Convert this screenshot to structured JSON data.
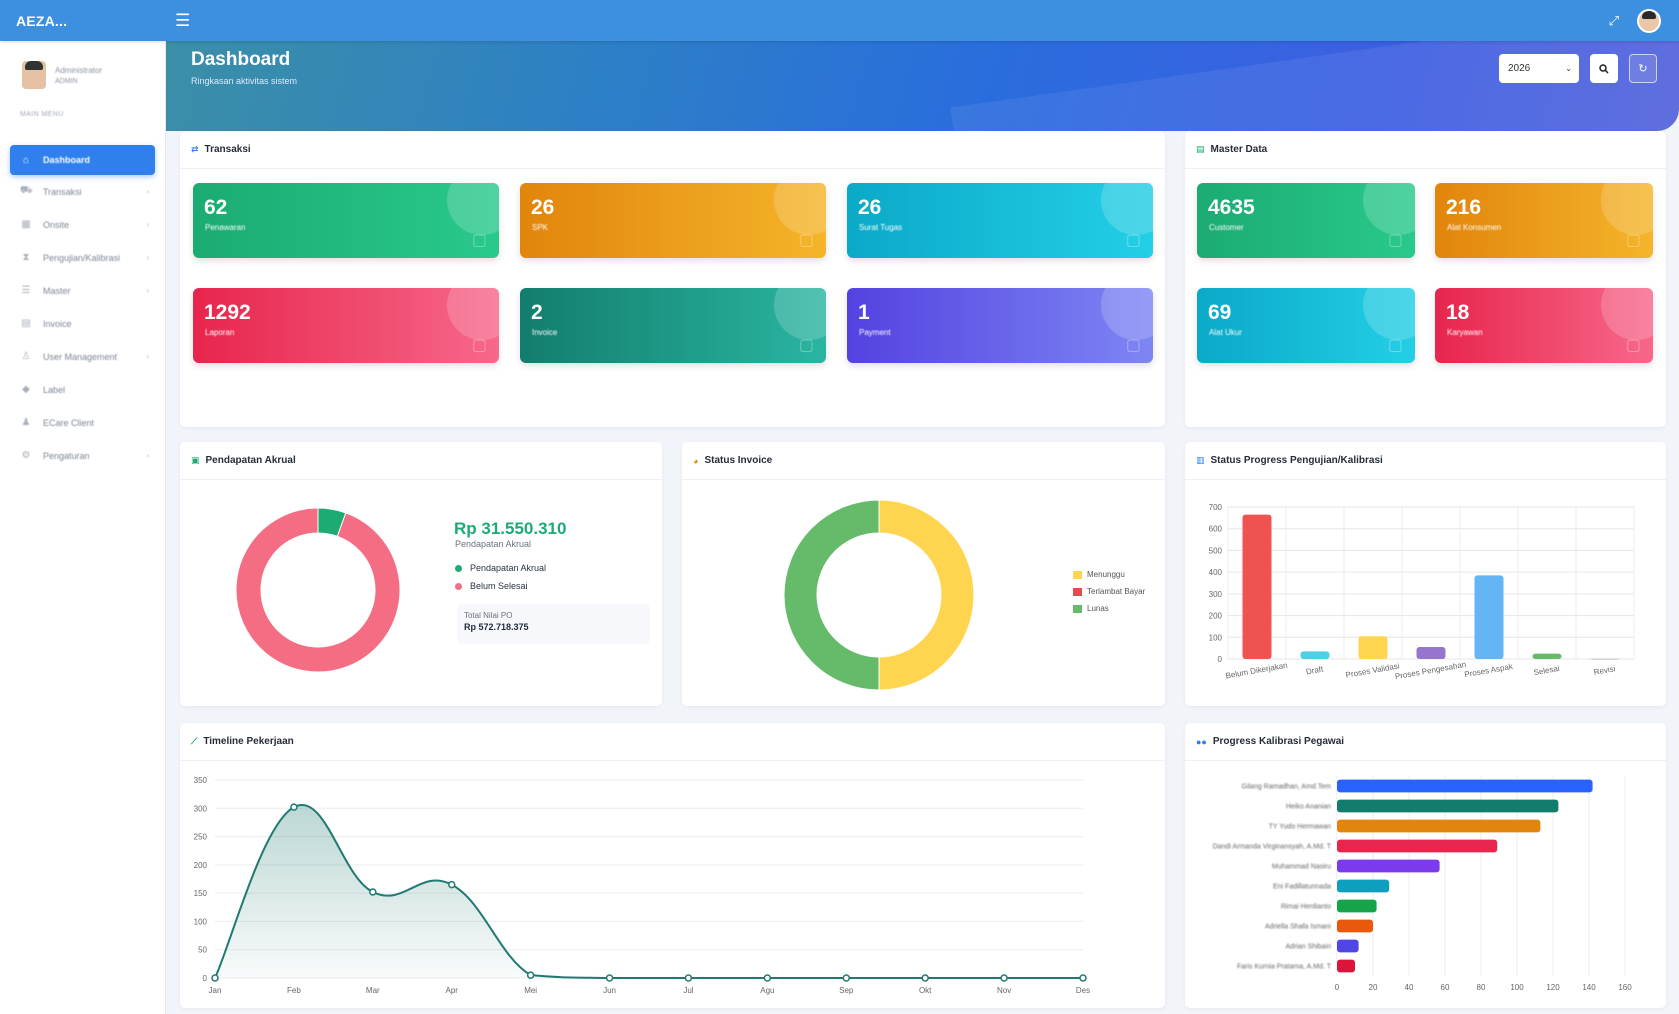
{
  "topbar": {
    "brand": "AEZA...",
    "menu_icon": "hamburger-icon",
    "fullscreen_icon": "expand-icon"
  },
  "sidebar": {
    "user_name": "Administrator",
    "user_role": "ADMIN",
    "heading": "MAIN MENU",
    "items": [
      {
        "label": "Dashboard",
        "icon": "home-icon",
        "active": true
      },
      {
        "label": "Transaksi",
        "icon": "cart-icon",
        "caret": true
      },
      {
        "label": "Onsite",
        "icon": "building-icon",
        "caret": true
      },
      {
        "label": "Pengujian/Kalibrasi",
        "icon": "hourglass-icon",
        "caret": true
      },
      {
        "label": "Master",
        "icon": "database-icon",
        "caret": true
      },
      {
        "label": "Invoice",
        "icon": "file-icon"
      },
      {
        "label": "User Management",
        "icon": "user-icon",
        "caret": true
      },
      {
        "label": "Label",
        "icon": "tag-icon"
      },
      {
        "label": "ECare Client",
        "icon": "person-icon"
      },
      {
        "label": "Pengaturan",
        "icon": "gear-icon",
        "caret": true
      }
    ]
  },
  "header": {
    "title": "Dashboard",
    "subtitle": "Ringkasan aktivitas sistem",
    "year_value": "2026"
  },
  "transaksi": {
    "title": "Transaksi",
    "stats": [
      {
        "value": "62",
        "label": "Penawaran"
      },
      {
        "value": "26",
        "label": "SPK"
      },
      {
        "value": "26",
        "label": "Surat Tugas"
      },
      {
        "value": "1292",
        "label": "Laporan"
      },
      {
        "value": "2",
        "label": "Invoice"
      },
      {
        "value": "1",
        "label": "Payment"
      }
    ]
  },
  "master_data": {
    "title": "Master Data",
    "stats": [
      {
        "value": "4635",
        "label": "Customer"
      },
      {
        "value": "216",
        "label": "Alat Konsumen"
      },
      {
        "value": "69",
        "label": "Alat Ukur"
      },
      {
        "value": "18",
        "label": "Karyawan"
      }
    ]
  },
  "pendapatan": {
    "title": "Pendapatan Akrual",
    "amount": "Rp 31.550.310",
    "amount_label": "Pendapatan Akrual",
    "legend": [
      "Pendapatan Akrual",
      "Belum Selesai"
    ],
    "total_label": "Total Nilai PO",
    "total_value": "Rp 572.718.375"
  },
  "status_invoice": {
    "title": "Status Invoice",
    "legend": [
      "Menunggu",
      "Terlambat Bayar",
      "Lunas"
    ]
  },
  "status_progress": {
    "title": "Status Progress Pengujian/Kalibrasi"
  },
  "timeline": {
    "title": "Timeline Pekerjaan"
  },
  "kalibrasi_pegawai": {
    "title": "Progress Kalibrasi Pegawai"
  },
  "chart_data": [
    {
      "type": "pie",
      "title": "Pendapatan Akrual",
      "labels": [
        "Pendapatan Akrual",
        "Belum Selesai"
      ],
      "values": [
        31550310,
        541168065
      ],
      "colors": [
        "#1bab73",
        "#f56d82"
      ]
    },
    {
      "type": "pie",
      "title": "Status Invoice",
      "labels": [
        "Menunggu",
        "Terlambat Bayar",
        "Lunas"
      ],
      "values": [
        1,
        0,
        1
      ],
      "colors": [
        "#ffd54f",
        "#e8494a",
        "#66bb6a"
      ]
    },
    {
      "type": "bar",
      "title": "Status Progress Pengujian/Kalibrasi",
      "categories": [
        "Belum Dikerjakan",
        "Draft",
        "Proses Validasi",
        "Proses Pengesahan",
        "Proses Aspak",
        "Selesai",
        "Revisi"
      ],
      "values": [
        665,
        35,
        105,
        55,
        385,
        25,
        2
      ],
      "colors": [
        "#ef5350",
        "#4dd0e1",
        "#ffd54f",
        "#9575cd",
        "#64b5f6",
        "#66bb6a",
        "#bdbdbd"
      ],
      "yticks": [
        0,
        100,
        200,
        300,
        400,
        500,
        600,
        700
      ],
      "ylim": [
        0,
        700
      ]
    },
    {
      "type": "area",
      "title": "Timeline Pekerjaan",
      "categories": [
        "Jan",
        "Feb",
        "Mar",
        "Apr",
        "Mei",
        "Jun",
        "Jul",
        "Agu",
        "Sep",
        "Okt",
        "Nov",
        "Des"
      ],
      "values": [
        0,
        302,
        152,
        165,
        5,
        0,
        0,
        0,
        0,
        0,
        0,
        0
      ],
      "yticks": [
        0,
        50,
        100,
        150,
        200,
        250,
        300,
        350
      ],
      "ylim": [
        0,
        350
      ],
      "color": "#1f7a72"
    },
    {
      "type": "bar",
      "orientation": "horizontal",
      "title": "Progress Kalibrasi Pegawai",
      "categories": [
        "Gilang Ramadhan, Amd.Tem",
        "Heiko Ananian",
        "TY Yudo Hermawan",
        "Dandi Armanda Virginansyah, A.Md. T",
        "Muhammad Nasiru",
        "Eni Fadillatunnada",
        "Rimai Herdianto",
        "Adriella Shafa Ismani",
        "Adrian Shibairi",
        "Faris Kurnia Pratama, A.Md. T"
      ],
      "values": [
        142,
        123,
        113,
        89,
        57,
        29,
        22,
        20,
        12,
        10
      ],
      "colors": [
        "#2962ff",
        "#137d6d",
        "#e1850c",
        "#e8254c",
        "#7c3aed",
        "#0e9fbf",
        "#16a34a",
        "#ea580c",
        "#4f46e5",
        "#dc143c"
      ],
      "xticks": [
        0,
        20,
        40,
        60,
        80,
        100,
        120,
        140,
        160
      ],
      "xlim": [
        0,
        160
      ]
    }
  ]
}
